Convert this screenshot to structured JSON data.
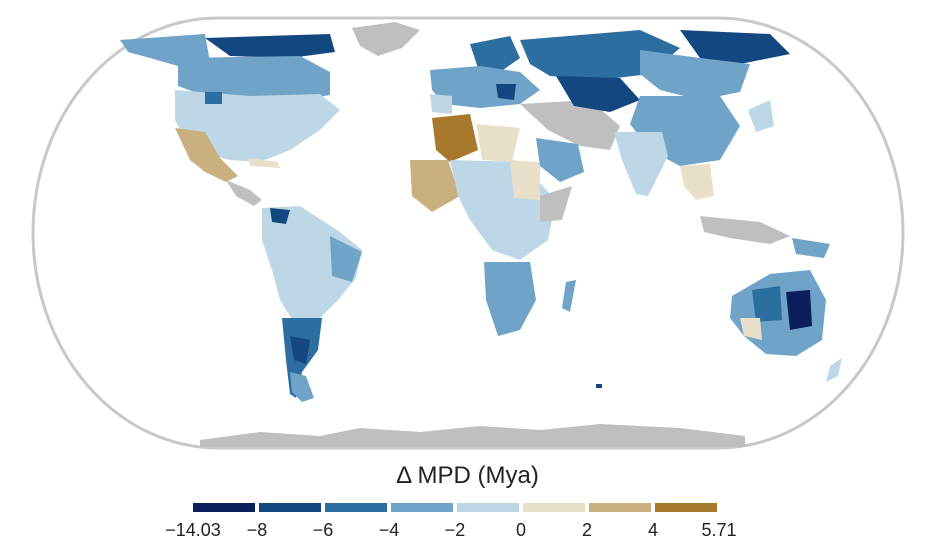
{
  "legend": {
    "title": "Δ MPD (Mya)",
    "ticks": [
      "−14.03",
      "−8",
      "−6",
      "−4",
      "−2",
      "0",
      "2",
      "4",
      "5.71"
    ],
    "colors": [
      "#0b1f5c",
      "#12477f",
      "#2b6e9f",
      "#6fa3c7",
      "#bdd7e6",
      "#e8dfc8",
      "#c9b07e",
      "#a8782d"
    ]
  },
  "map": {
    "projection": "Eckert IV (world)",
    "no_data_color": "#bfbfbf",
    "ocean_color": "#ffffff",
    "frame_color": "#c8c8c8"
  }
}
